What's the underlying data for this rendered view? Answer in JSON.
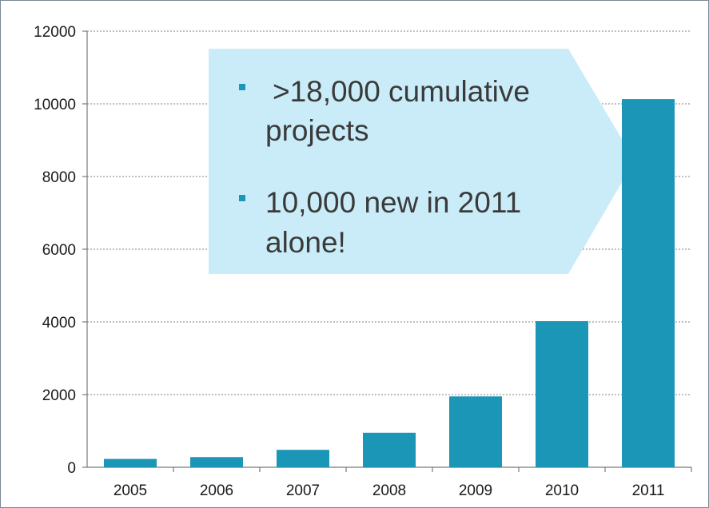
{
  "chart_data": {
    "type": "bar",
    "categories": [
      "2005",
      "2006",
      "2007",
      "2008",
      "2009",
      "2010",
      "2011"
    ],
    "values": [
      230,
      280,
      480,
      950,
      1950,
      4020,
      10130
    ],
    "title": "",
    "xlabel": "",
    "ylabel": "",
    "ylim": [
      0,
      12000
    ],
    "yticks": [
      "0",
      "2000",
      "4000",
      "6000",
      "8000",
      "10000",
      "12000"
    ],
    "grid": "horizontal dotted",
    "legend": "none",
    "bar_color": "#1b96b7"
  },
  "callout": {
    "fill_color": "#c9ecf8",
    "bullet_color": "#1b96b7",
    "bullets": [
      {
        "line1": ">18,000 cumulative",
        "line2": "projects"
      },
      {
        "line1": "10,000 new in 2011",
        "line2": "alone!"
      }
    ]
  }
}
